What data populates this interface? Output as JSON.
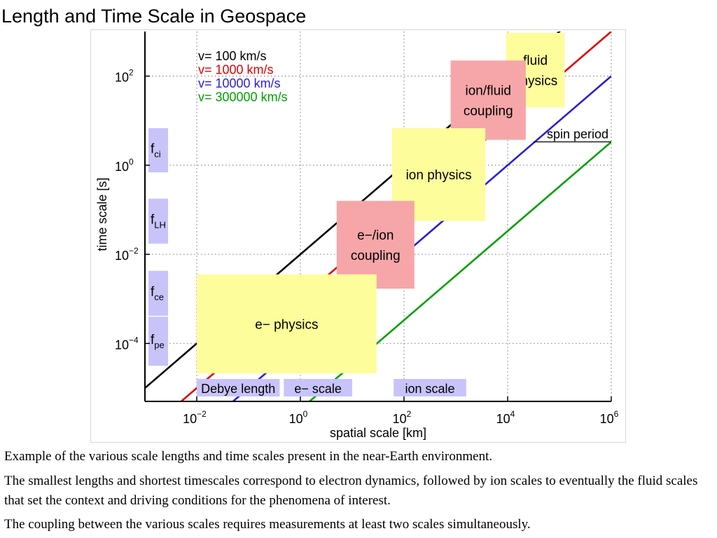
{
  "slide": {
    "title": "Length and Time Scale in Geospace",
    "captions": [
      "Example of the various scale lengths and time scales present in the near-Earth environment.",
      "The smallest lengths and shortest timescales correspond to electron dynamics, followed by ion scales to eventually the fluid scales that set the context and driving conditions for the phenomena of interest.",
      "The coupling between the various scales requires measurements at least two scales simultaneously."
    ]
  },
  "chart_data": {
    "type": "line",
    "xlabel": "spatial scale [km]",
    "ylabel": "time scale [s]",
    "xscale": "log",
    "yscale": "log",
    "xlim_log10": [
      -3.0,
      6.0
    ],
    "ylim_log10": [
      -5.3,
      3.0
    ],
    "xticks": [
      {
        "exp": -2,
        "base": "10",
        "power": "−2"
      },
      {
        "exp": 0,
        "base": "10",
        "power": "0"
      },
      {
        "exp": 2,
        "base": "10",
        "power": "2"
      },
      {
        "exp": 4,
        "base": "10",
        "power": "4"
      },
      {
        "exp": 6,
        "base": "10",
        "power": "6"
      }
    ],
    "yticks": [
      {
        "exp": 2,
        "base": "10",
        "power": "2"
      },
      {
        "exp": 0,
        "base": "10",
        "power": "0"
      },
      {
        "exp": -2,
        "base": "10",
        "power": "−2"
      },
      {
        "exp": -4,
        "base": "10",
        "power": "−4"
      }
    ],
    "grid": true,
    "legend_position": "top-left",
    "series": [
      {
        "name": "v= 100 km/s",
        "color": "#000000",
        "speed_km_s": 100
      },
      {
        "name": "v= 1000 km/s",
        "color": "#e00000",
        "speed_km_s": 1000
      },
      {
        "name": "v= 10000 km/s",
        "color": "#2a1ed6",
        "speed_km_s": 10000
      },
      {
        "name": "v= 300000 km/s",
        "color": "#00a000",
        "speed_km_s": 300000
      }
    ],
    "regions": [
      {
        "label": [
          "fluid",
          "physics"
        ],
        "color": "#fdfd9c",
        "x_log10": [
          3.97,
          5.1
        ],
        "y_log10": [
          1.3,
          2.97
        ]
      },
      {
        "label": [
          "ion/fluid",
          "coupling"
        ],
        "color": "#f6a6a8",
        "x_log10": [
          2.9,
          4.35
        ],
        "y_log10": [
          0.57,
          2.35
        ]
      },
      {
        "label": [
          "ion physics"
        ],
        "color": "#fdfd9c",
        "x_log10": [
          1.77,
          3.57
        ],
        "y_log10": [
          -1.25,
          0.83
        ]
      },
      {
        "label": [
          "e−/ion",
          "coupling"
        ],
        "color": "#f6a6a8",
        "x_log10": [
          0.7,
          2.2
        ],
        "y_log10": [
          -2.77,
          -0.8
        ]
      },
      {
        "label": [
          "e− physics"
        ],
        "color": "#fdfd9c",
        "x_log10": [
          -2.0,
          1.47
        ],
        "y_log10": [
          -4.67,
          -2.45
        ]
      }
    ],
    "frequency_bands": [
      {
        "base": "f",
        "sub": "ci",
        "y_log10": [
          -0.16,
          0.83
        ]
      },
      {
        "base": "f",
        "sub": "LH",
        "y_log10": [
          -1.76,
          -0.75
        ]
      },
      {
        "base": "f",
        "sub": "ce",
        "y_log10": [
          -3.38,
          -2.37
        ]
      },
      {
        "base": "f",
        "sub": "pe",
        "y_log10": [
          -4.5,
          -3.4
        ]
      }
    ],
    "length_bands": [
      {
        "label": "Debye length",
        "x_log10": [
          -2.0,
          -0.4
        ]
      },
      {
        "label": "e− scale",
        "x_log10": [
          -0.32,
          1.0
        ]
      },
      {
        "label": "ion scale",
        "x_log10": [
          1.8,
          3.2
        ]
      }
    ],
    "annotations": [
      {
        "label": "spin period",
        "y_log10": 0.65,
        "x_log10": [
          4.5,
          6.0
        ]
      }
    ],
    "colors": {
      "band": "#c8c4fa",
      "grid": "#888888"
    }
  }
}
